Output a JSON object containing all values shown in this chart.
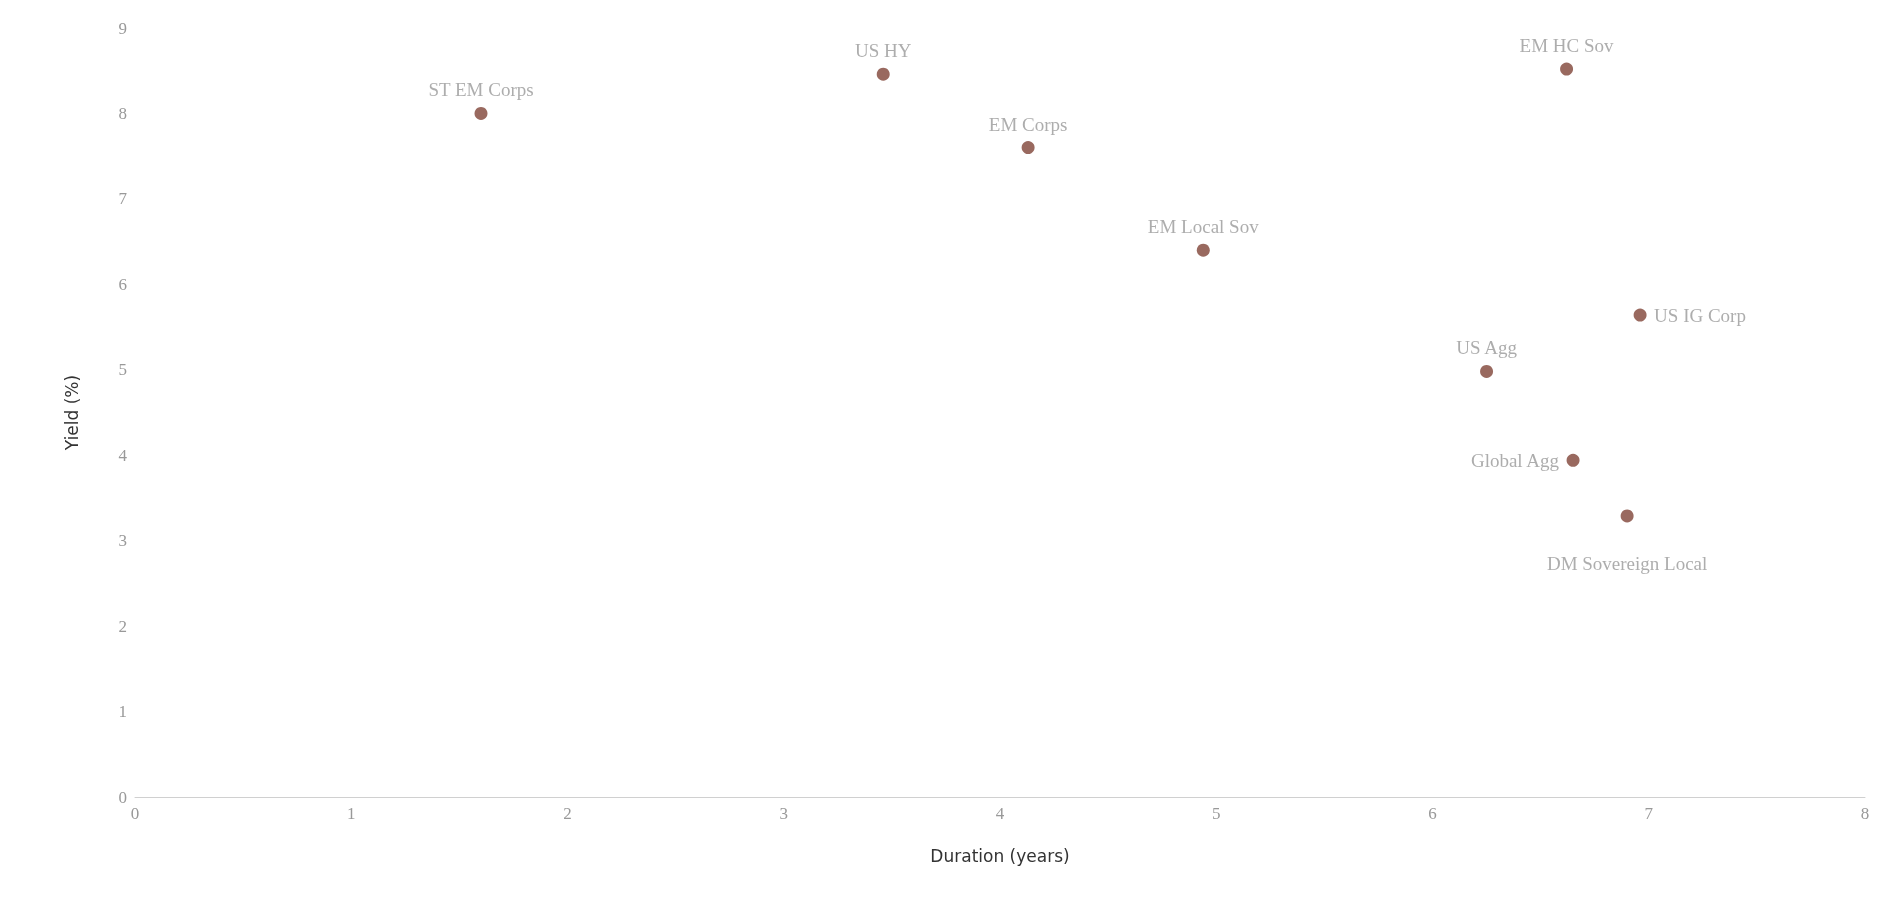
{
  "chart_data": {
    "type": "scatter",
    "xlabel": "Duration (years)",
    "ylabel": "Yield (%)",
    "x": [
      1.6,
      3.46,
      4.13,
      4.94,
      6.62,
      6.96,
      6.25,
      6.65,
      6.9
    ],
    "values": [
      8.0,
      8.46,
      7.6,
      6.4,
      8.52,
      5.64,
      4.98,
      3.94,
      3.29
    ],
    "color": "#7f4437",
    "marker": "circle",
    "xlim": [
      0,
      8
    ],
    "xticks": [
      0,
      1,
      2,
      3,
      4,
      5,
      6,
      7,
      8
    ],
    "ylim": [
      0,
      9
    ],
    "yticks": [
      0,
      1,
      2,
      3,
      4,
      5,
      6,
      7,
      8,
      9
    ],
    "grid": false,
    "annotations": [
      {
        "text": "ST EM Corps",
        "x": 1.6,
        "y": 8.0
      },
      {
        "text": "US HY",
        "x": 3.46,
        "y": 8.46
      },
      {
        "text": "EM Corps",
        "x": 4.13,
        "y": 7.6
      },
      {
        "text": "EM Local Sov",
        "x": 4.94,
        "y": 6.4
      },
      {
        "text": "EM HC Sov",
        "x": 6.62,
        "y": 8.52
      },
      {
        "text": "US IG Corp",
        "x": 6.96,
        "y": 5.64
      },
      {
        "text": "US Agg",
        "x": 6.25,
        "y": 4.98
      },
      {
        "text": "Global Agg",
        "x": 6.65,
        "y": 3.94
      },
      {
        "text": "DM Sovereign Local",
        "x": 6.9,
        "y": 3.29
      }
    ]
  }
}
